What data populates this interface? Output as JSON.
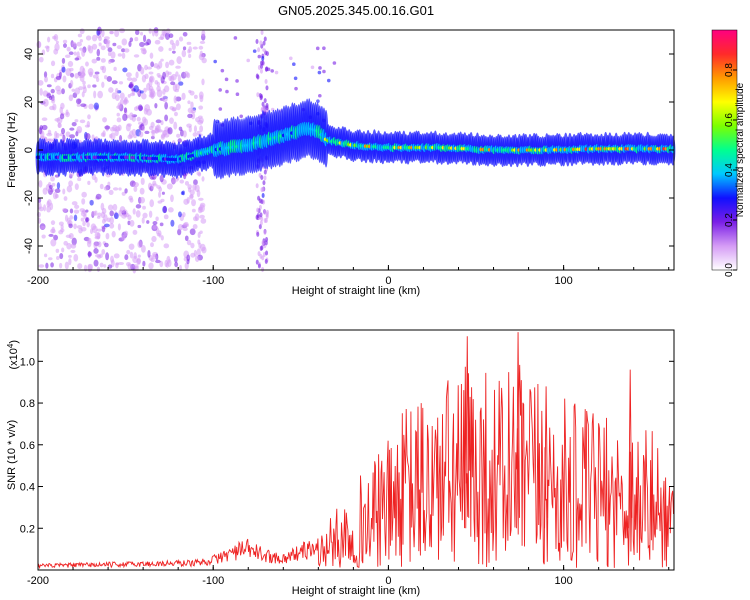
{
  "chart_data": [
    {
      "type": "heatmap",
      "title": "GN05.2025.345.00.16.G01",
      "xlabel": "Height of straight line (km)",
      "ylabel": "Frequency (Hz)",
      "xlim": [
        -200,
        163
      ],
      "ylim": [
        -50,
        50
      ],
      "xticks": [
        -200,
        -100,
        0,
        100
      ],
      "yticks": [
        -40,
        -20,
        0,
        20,
        40
      ],
      "colorbar": {
        "label": "Normalized spectral amplitude",
        "range": [
          0,
          0.96
        ],
        "ticks": [
          0.0,
          0.2,
          0.4,
          0.6,
          0.8
        ],
        "colors": [
          "#ffffff",
          "#d59cf5",
          "#7a1fe6",
          "#1010ff",
          "#00c8ff",
          "#00ff90",
          "#7cff00",
          "#ffff00",
          "#ff9a00",
          "#ff2a2a",
          "#ff0080"
        ]
      },
      "ridge": {
        "x": [
          -200,
          -150,
          -120,
          -100,
          -80,
          -60,
          -45,
          -40,
          -35,
          -20,
          0,
          30,
          60,
          90,
          120,
          160
        ],
        "y": [
          -3,
          -3,
          -4,
          0,
          2,
          6,
          9,
          8,
          4,
          2,
          1,
          1,
          0,
          0,
          0.5,
          0.5
        ]
      }
    },
    {
      "type": "line",
      "xlabel": "Height of straight line (km)",
      "ylabel": "SNR (10 * v/v)",
      "y_multiplier": "(x10",
      "y_multiplier_exp": "4",
      "y_multiplier_close": ")",
      "xlim": [
        -200,
        163
      ],
      "ylim": [
        0,
        1.15
      ],
      "xticks": [
        -200,
        -100,
        0,
        100
      ],
      "yticks": [
        0.2,
        0.4,
        0.6,
        0.8,
        1.0
      ],
      "ytick_labels": [
        "0.2",
        "0.4",
        "0.6",
        "0.8",
        "1.0"
      ],
      "color": "#ee2222",
      "envelope": {
        "x": [
          -200,
          -150,
          -110,
          -100,
          -90,
          -80,
          -70,
          -60,
          -50,
          -40,
          -30,
          -20,
          -10,
          0,
          10,
          20,
          30,
          40,
          50,
          60,
          70,
          80,
          90,
          100,
          110,
          120,
          130,
          140,
          150,
          163
        ],
        "y": [
          0.03,
          0.04,
          0.05,
          0.07,
          0.12,
          0.15,
          0.1,
          0.08,
          0.13,
          0.16,
          0.28,
          0.42,
          0.5,
          0.62,
          0.78,
          0.85,
          0.9,
          0.95,
          1.05,
          0.92,
          1.0,
          0.95,
          0.85,
          0.82,
          0.78,
          0.75,
          0.7,
          0.72,
          0.68,
          0.45
        ]
      },
      "peaks": {
        "x": [
          45,
          74,
          90,
          138
        ],
        "y": [
          1.12,
          1.14,
          0.88,
          0.96
        ]
      }
    }
  ]
}
